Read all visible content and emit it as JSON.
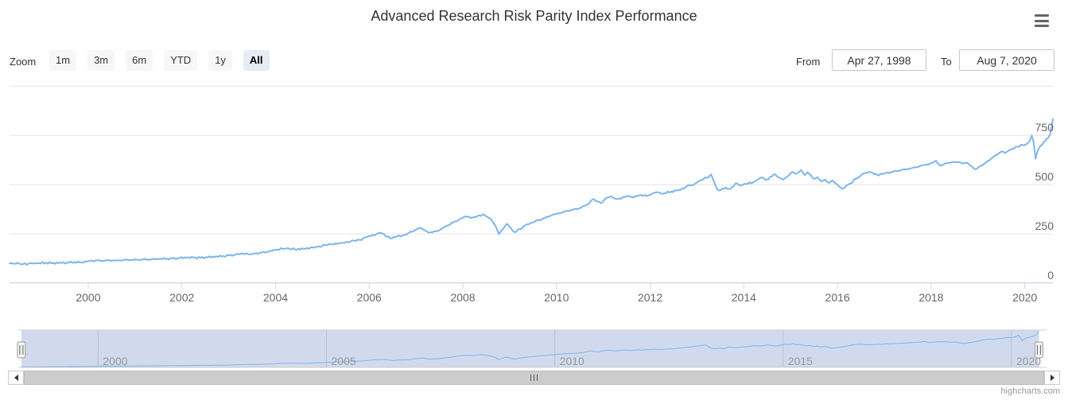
{
  "title": "Advanced Research Risk Parity Index Performance",
  "range_selector": {
    "zoom_label": "Zoom",
    "buttons": [
      {
        "label": "1m",
        "selected": false
      },
      {
        "label": "3m",
        "selected": false
      },
      {
        "label": "6m",
        "selected": false
      },
      {
        "label": "YTD",
        "selected": false
      },
      {
        "label": "1y",
        "selected": false
      },
      {
        "label": "All",
        "selected": true
      }
    ],
    "from_label": "From",
    "from_value": "Apr 27, 1998",
    "to_label": "To",
    "to_value": "Aug 7, 2020"
  },
  "credits": "highcharts.com",
  "icons": {
    "menu": "hamburger-icon",
    "scroll_left": "arrow-left-icon",
    "scroll_right": "arrow-right-icon"
  },
  "colors": {
    "series": "#7cb5ec",
    "grid": "#e6e6e6",
    "axis_line": "#ccd6eb",
    "axis_label": "#666666",
    "nav_label": "#999999",
    "title": "#333333",
    "button_bg": "#f7f7f7",
    "button_selected_bg": "#e6ebf5",
    "navigator_mask": "rgba(102,133,194,0.3)",
    "navigator_outline": "#cccccc",
    "scrollbar_thumb": "#cccccc",
    "credits": "#999999"
  },
  "chart_data": {
    "type": "line",
    "title": "Advanced Research Risk Parity Index Performance",
    "legend": "none",
    "x_axis": {
      "tick_years": [
        2000,
        2002,
        2004,
        2006,
        2008,
        2010,
        2012,
        2014,
        2016,
        2018,
        2020
      ],
      "range": [
        1998.32,
        2020.6
      ],
      "grid": false
    },
    "y_axis": {
      "tick_values": [
        0,
        250,
        500,
        750
      ],
      "range": [
        0,
        1000
      ],
      "grid": true,
      "labels_position": "right-inside"
    },
    "navigator": {
      "tick_years": [
        2000,
        2005,
        2010,
        2015,
        2020
      ],
      "range": [
        1998.32,
        2020.6
      ]
    },
    "series": [
      {
        "name": "Advanced Research Risk Parity Index",
        "points": [
          [
            1998.32,
            100
          ],
          [
            1998.42,
            99
          ],
          [
            1998.52,
            100.5
          ],
          [
            1998.62,
            97.5
          ],
          [
            1998.72,
            97
          ],
          [
            1998.82,
            99.5
          ],
          [
            1998.95,
            101
          ],
          [
            1999.1,
            103
          ],
          [
            1999.25,
            102
          ],
          [
            1999.4,
            104.5
          ],
          [
            1999.55,
            104
          ],
          [
            1999.7,
            106.5
          ],
          [
            1999.85,
            106
          ],
          [
            2000.0,
            112
          ],
          [
            2000.15,
            115
          ],
          [
            2000.3,
            113.5
          ],
          [
            2000.45,
            116
          ],
          [
            2000.6,
            115
          ],
          [
            2000.75,
            117
          ],
          [
            2000.9,
            117.5
          ],
          [
            2001.05,
            118.5
          ],
          [
            2001.2,
            120.5
          ],
          [
            2001.35,
            119.5
          ],
          [
            2001.5,
            122
          ],
          [
            2001.65,
            123
          ],
          [
            2001.8,
            124.5
          ],
          [
            2001.95,
            126.5
          ],
          [
            2002.1,
            128.5
          ],
          [
            2002.25,
            129.5
          ],
          [
            2002.4,
            128.5
          ],
          [
            2002.55,
            131
          ],
          [
            2002.7,
            133
          ],
          [
            2002.85,
            135.5
          ],
          [
            2003.0,
            140
          ],
          [
            2003.15,
            144
          ],
          [
            2003.3,
            150
          ],
          [
            2003.42,
            146.5
          ],
          [
            2003.55,
            150
          ],
          [
            2003.7,
            154
          ],
          [
            2003.85,
            159
          ],
          [
            2004.0,
            168
          ],
          [
            2004.15,
            174
          ],
          [
            2004.28,
            177
          ],
          [
            2004.45,
            169
          ],
          [
            2004.6,
            174
          ],
          [
            2004.8,
            181
          ],
          [
            2005.0,
            190
          ],
          [
            2005.2,
            197
          ],
          [
            2005.4,
            204
          ],
          [
            2005.6,
            211
          ],
          [
            2005.8,
            219
          ],
          [
            2006.0,
            240
          ],
          [
            2006.15,
            248
          ],
          [
            2006.28,
            252
          ],
          [
            2006.45,
            228
          ],
          [
            2006.6,
            238
          ],
          [
            2006.8,
            247
          ],
          [
            2007.0,
            272
          ],
          [
            2007.1,
            281
          ],
          [
            2007.22,
            263
          ],
          [
            2007.35,
            258
          ],
          [
            2007.5,
            268
          ],
          [
            2007.65,
            290
          ],
          [
            2007.8,
            308
          ],
          [
            2007.95,
            326
          ],
          [
            2008.08,
            338
          ],
          [
            2008.2,
            333
          ],
          [
            2008.32,
            342
          ],
          [
            2008.42,
            347
          ],
          [
            2008.52,
            337
          ],
          [
            2008.62,
            318
          ],
          [
            2008.7,
            290
          ],
          [
            2008.77,
            248
          ],
          [
            2008.85,
            272
          ],
          [
            2008.93,
            300
          ],
          [
            2009.03,
            278
          ],
          [
            2009.12,
            258
          ],
          [
            2009.22,
            274
          ],
          [
            2009.32,
            292
          ],
          [
            2009.45,
            305
          ],
          [
            2009.6,
            318
          ],
          [
            2009.75,
            330
          ],
          [
            2009.9,
            345
          ],
          [
            2010.05,
            354
          ],
          [
            2010.2,
            365
          ],
          [
            2010.35,
            373
          ],
          [
            2010.5,
            381
          ],
          [
            2010.65,
            398
          ],
          [
            2010.77,
            425
          ],
          [
            2010.87,
            415
          ],
          [
            2010.95,
            406
          ],
          [
            2011.07,
            433
          ],
          [
            2011.17,
            440
          ],
          [
            2011.3,
            426
          ],
          [
            2011.42,
            436
          ],
          [
            2011.52,
            443
          ],
          [
            2011.65,
            435
          ],
          [
            2011.8,
            448
          ],
          [
            2011.92,
            442
          ],
          [
            2012.05,
            455
          ],
          [
            2012.18,
            461
          ],
          [
            2012.3,
            456
          ],
          [
            2012.45,
            465
          ],
          [
            2012.6,
            472
          ],
          [
            2012.75,
            486
          ],
          [
            2012.88,
            497
          ],
          [
            2013.0,
            510
          ],
          [
            2013.1,
            524
          ],
          [
            2013.2,
            535
          ],
          [
            2013.3,
            552
          ],
          [
            2013.42,
            482
          ],
          [
            2013.5,
            471
          ],
          [
            2013.62,
            485
          ],
          [
            2013.72,
            478
          ],
          [
            2013.82,
            506
          ],
          [
            2013.92,
            495
          ],
          [
            2014.05,
            504
          ],
          [
            2014.2,
            512
          ],
          [
            2014.37,
            536
          ],
          [
            2014.48,
            525
          ],
          [
            2014.6,
            542
          ],
          [
            2014.67,
            552
          ],
          [
            2014.76,
            536
          ],
          [
            2014.84,
            525
          ],
          [
            2014.93,
            542
          ],
          [
            2015.05,
            565
          ],
          [
            2015.13,
            556
          ],
          [
            2015.22,
            574
          ],
          [
            2015.3,
            549
          ],
          [
            2015.36,
            563
          ],
          [
            2015.5,
            529
          ],
          [
            2015.57,
            538
          ],
          [
            2015.66,
            516
          ],
          [
            2015.74,
            525
          ],
          [
            2015.82,
            509
          ],
          [
            2015.9,
            520
          ],
          [
            2015.99,
            502
          ],
          [
            2016.04,
            489
          ],
          [
            2016.11,
            479
          ],
          [
            2016.19,
            495
          ],
          [
            2016.28,
            506
          ],
          [
            2016.39,
            529
          ],
          [
            2016.48,
            542
          ],
          [
            2016.56,
            556
          ],
          [
            2016.67,
            565
          ],
          [
            2016.75,
            560
          ],
          [
            2016.85,
            548
          ],
          [
            2016.92,
            555
          ],
          [
            2017.0,
            558
          ],
          [
            2017.15,
            564
          ],
          [
            2017.3,
            571
          ],
          [
            2017.45,
            578
          ],
          [
            2017.6,
            585
          ],
          [
            2017.75,
            593
          ],
          [
            2017.9,
            602
          ],
          [
            2018.0,
            608
          ],
          [
            2018.1,
            622
          ],
          [
            2018.18,
            598
          ],
          [
            2018.3,
            608
          ],
          [
            2018.42,
            612
          ],
          [
            2018.55,
            615
          ],
          [
            2018.65,
            608
          ],
          [
            2018.78,
            611
          ],
          [
            2018.88,
            590
          ],
          [
            2018.96,
            578
          ],
          [
            2019.05,
            595
          ],
          [
            2019.15,
            608
          ],
          [
            2019.25,
            625
          ],
          [
            2019.37,
            650
          ],
          [
            2019.5,
            668
          ],
          [
            2019.58,
            660
          ],
          [
            2019.7,
            678
          ],
          [
            2019.85,
            692
          ],
          [
            2019.95,
            702
          ],
          [
            2020.05,
            708
          ],
          [
            2020.1,
            720
          ],
          [
            2020.15,
            750
          ],
          [
            2020.19,
            712
          ],
          [
            2020.23,
            632
          ],
          [
            2020.27,
            670
          ],
          [
            2020.32,
            692
          ],
          [
            2020.38,
            705
          ],
          [
            2020.44,
            722
          ],
          [
            2020.5,
            737
          ],
          [
            2020.55,
            762
          ],
          [
            2020.6,
            833
          ]
        ]
      }
    ]
  }
}
